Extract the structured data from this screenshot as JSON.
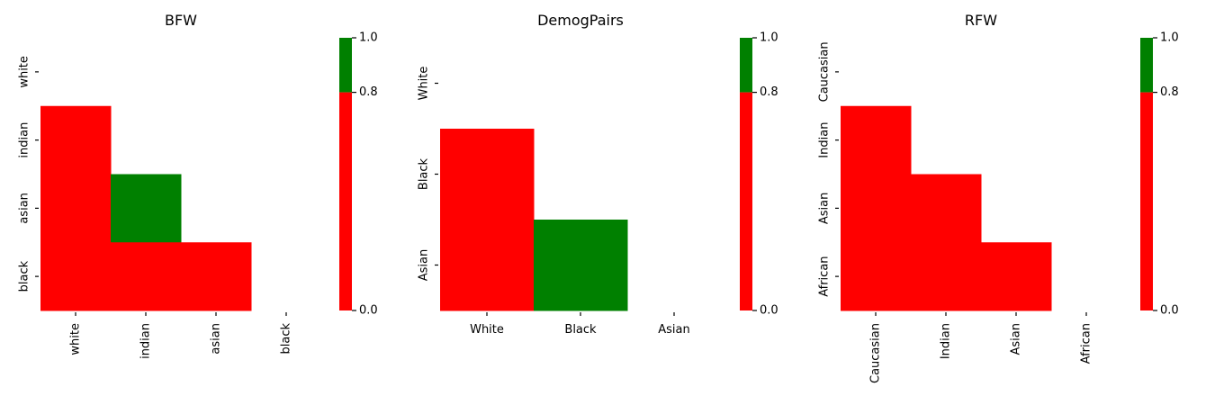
{
  "palette": {
    "below": "#ff0000",
    "above": "#008000"
  },
  "chart_data": [
    {
      "type": "heatmap",
      "title": "BFW",
      "labels": [
        "white",
        "indian",
        "asian",
        "black"
      ],
      "x_labels_rotated": true,
      "values": [
        [
          null,
          null,
          null,
          null
        ],
        [
          0.5,
          null,
          null,
          null
        ],
        [
          0.5,
          0.9,
          null,
          null
        ],
        [
          0.5,
          0.5,
          0.5,
          null
        ]
      ],
      "colorbar": {
        "min": 0.0,
        "threshold": 0.8,
        "max": 1.0,
        "ticks": [
          "0.0",
          "0.8",
          "1.0"
        ]
      }
    },
    {
      "type": "heatmap",
      "title": "DemogPairs",
      "labels": [
        "White",
        "Black",
        "Asian"
      ],
      "x_labels_rotated": false,
      "values": [
        [
          null,
          null,
          null
        ],
        [
          0.5,
          null,
          null
        ],
        [
          0.5,
          0.9,
          null
        ]
      ],
      "colorbar": {
        "min": 0.0,
        "threshold": 0.8,
        "max": 1.0,
        "ticks": [
          "0.0",
          "0.8",
          "1.0"
        ]
      }
    },
    {
      "type": "heatmap",
      "title": "RFW",
      "labels": [
        "Caucasian",
        "Indian",
        "Asian",
        "African"
      ],
      "x_labels_rotated": true,
      "values": [
        [
          null,
          null,
          null,
          null
        ],
        [
          0.5,
          null,
          null,
          null
        ],
        [
          0.5,
          0.5,
          null,
          null
        ],
        [
          0.5,
          0.5,
          0.5,
          null
        ]
      ],
      "colorbar": {
        "min": 0.0,
        "threshold": 0.8,
        "max": 1.0,
        "ticks": [
          "0.0",
          "0.8",
          "1.0"
        ]
      }
    }
  ]
}
